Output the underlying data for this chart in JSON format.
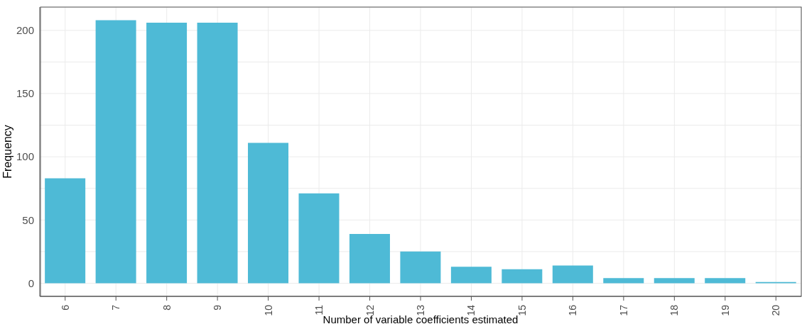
{
  "chart_data": {
    "type": "bar",
    "xlabel": "Number of variable coefficients estimated",
    "ylabel": "Frequency",
    "categories": [
      "6",
      "7",
      "8",
      "9",
      "10",
      "11",
      "12",
      "13",
      "14",
      "15",
      "16",
      "17",
      "18",
      "19",
      "20"
    ],
    "values": [
      83,
      208,
      206,
      206,
      111,
      71,
      39,
      25,
      13,
      11,
      14,
      4,
      4,
      4,
      1
    ],
    "color": "#4ebad6",
    "ylim": [
      -10.4,
      218.4
    ],
    "yticks": [
      0,
      {
        "value": 25,
        "label": null
      },
      50,
      {
        "value": 75,
        "label": null
      },
      100,
      {
        "value": 125,
        "label": null
      },
      150,
      {
        "value": 175,
        "label": null
      },
      200
    ],
    "grid": true,
    "legend": false
  }
}
